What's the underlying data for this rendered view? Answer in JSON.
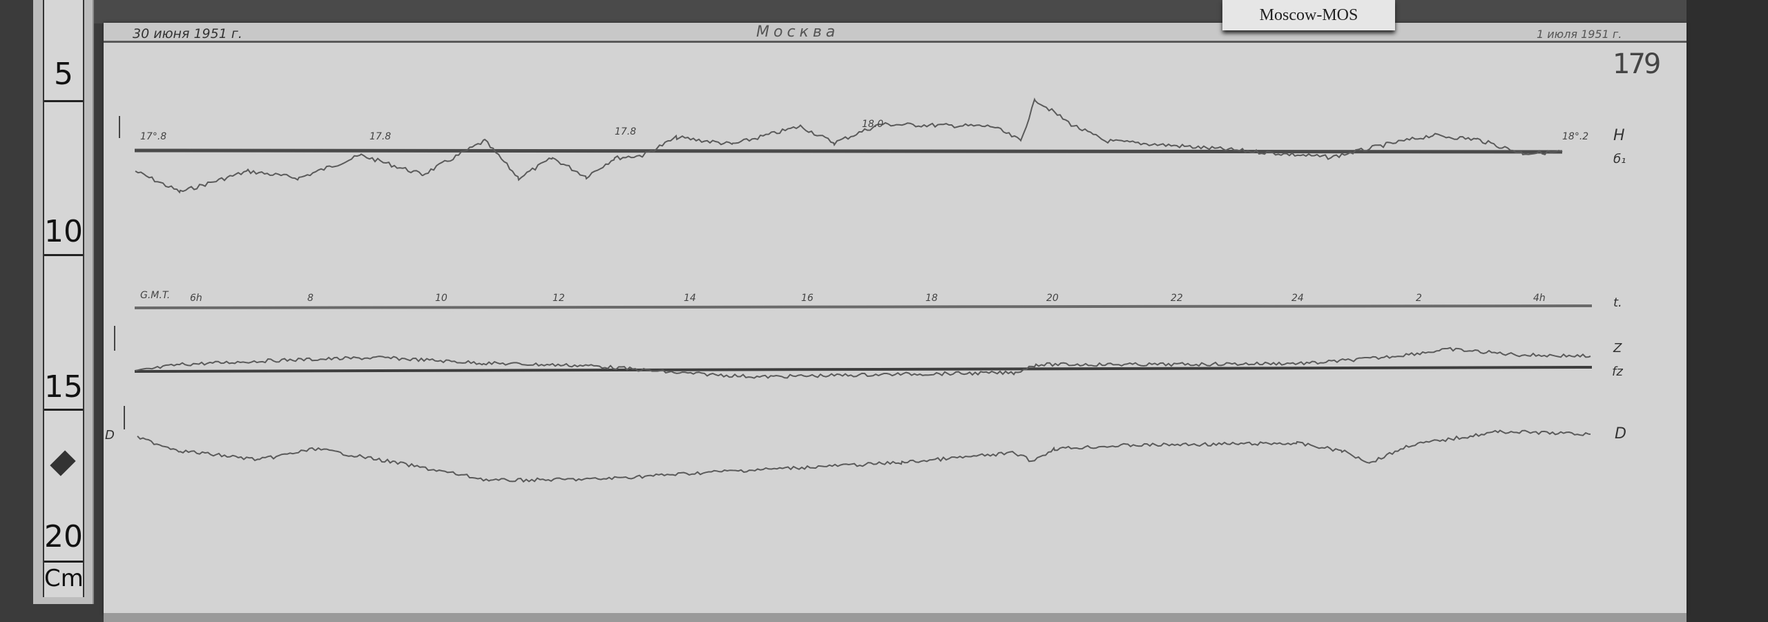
{
  "label_card": "Moscow-MOS",
  "ruler": {
    "marks": [
      "5",
      "10",
      "15",
      "20"
    ],
    "unit": "Cm"
  },
  "header": {
    "date_start": "30 июня 1951 г.",
    "station": "Москва",
    "date_end": "1 июля 1951 г."
  },
  "sheet_number": "179",
  "h_trace": {
    "scale_labels": [
      "17°.8",
      "17.8",
      "17.8",
      "18.0",
      "18°.2"
    ],
    "label": "H",
    "baseline_label": "б₁"
  },
  "time_axis": {
    "label": "G.M.T.",
    "ticks": [
      "6h",
      "8",
      "10",
      "12",
      "14",
      "16",
      "18",
      "20",
      "22",
      "24",
      "2",
      "4h"
    ],
    "line_label": "t."
  },
  "z_trace": {
    "label": "Z",
    "baseline_label": "fz"
  },
  "d_trace": {
    "label": "D",
    "left_label": "D"
  },
  "colors": {
    "paper": "#d3d3d3",
    "trace": "#555555",
    "baseline": "#4a4a4a",
    "background": "#3b3b3b"
  }
}
